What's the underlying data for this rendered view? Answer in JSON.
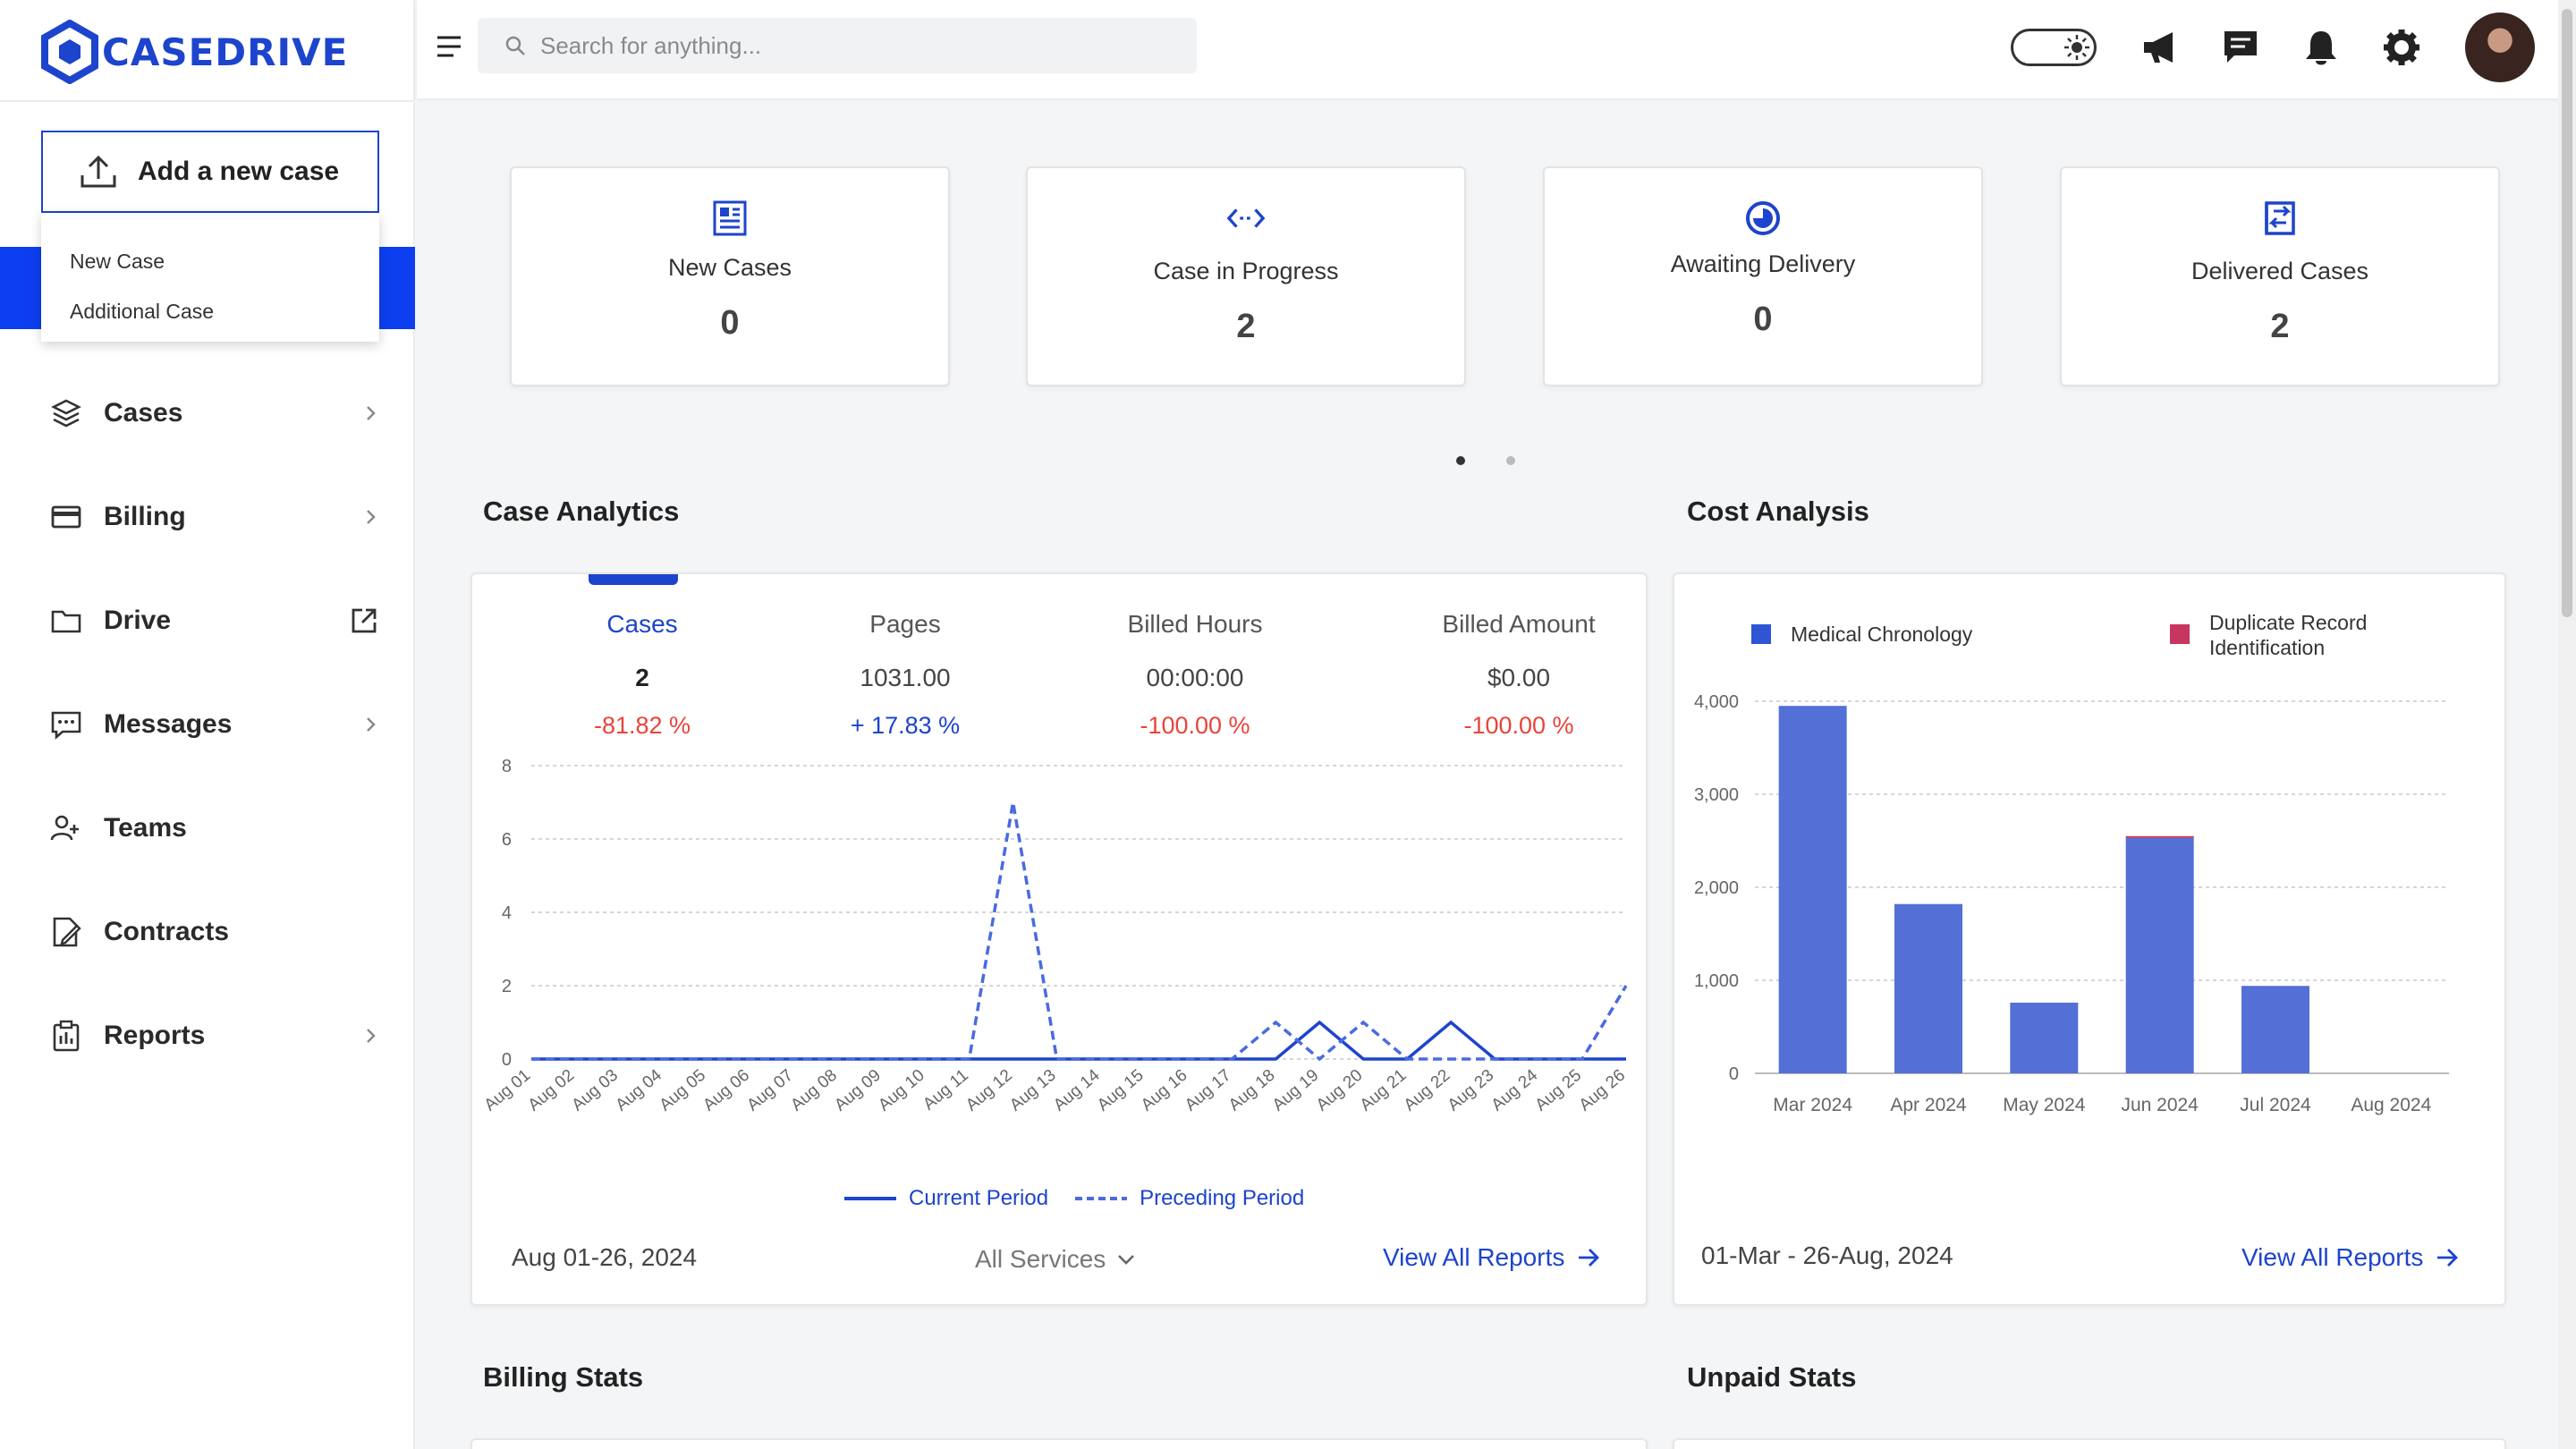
{
  "brand": {
    "name": "CASEDRIVE",
    "color": "#1d44cc"
  },
  "sidebar": {
    "add_case_label": "Add a new case",
    "dropdown": [
      "New Case",
      "Additional Case"
    ],
    "items": [
      {
        "label": "Cases",
        "icon": "layers-icon",
        "trailing": "chevron"
      },
      {
        "label": "Billing",
        "icon": "credit-card-icon",
        "trailing": "chevron"
      },
      {
        "label": "Drive",
        "icon": "folder-icon",
        "trailing": "external-link"
      },
      {
        "label": "Messages",
        "icon": "message-icon",
        "trailing": "chevron"
      },
      {
        "label": "Teams",
        "icon": "team-icon",
        "trailing": "none"
      },
      {
        "label": "Contracts",
        "icon": "contract-icon",
        "trailing": "none"
      },
      {
        "label": "Reports",
        "icon": "clipboard-icon",
        "trailing": "chevron"
      }
    ]
  },
  "topbar": {
    "search_placeholder": "Search for anything...",
    "icons": [
      "theme-toggle-icon",
      "megaphone-icon",
      "chat-icon",
      "bell-icon",
      "gear-icon",
      "avatar"
    ]
  },
  "stats": [
    {
      "title": "New Cases",
      "value": "0",
      "icon": "document-icon"
    },
    {
      "title": "Case in Progress",
      "value": "2",
      "icon": "code-arrows-icon"
    },
    {
      "title": "Awaiting Delivery",
      "value": "0",
      "icon": "clock-half-icon"
    },
    {
      "title": "Delivered Cases",
      "value": "2",
      "icon": "delivered-icon"
    }
  ],
  "case_analytics": {
    "title": "Case Analytics",
    "tabs": [
      {
        "label": "Cases",
        "value": "2",
        "change": "-81.82 %",
        "trend": "neg"
      },
      {
        "label": "Pages",
        "value": "1031.00",
        "change": "+ 17.83 %",
        "trend": "pos"
      },
      {
        "label": "Billed Hours",
        "value": "00:00:00",
        "change": "-100.00 %",
        "trend": "neg"
      },
      {
        "label": "Billed Amount",
        "value": "$0.00",
        "change": "-100.00 %",
        "trend": "neg"
      }
    ],
    "legend_current": "Current Period",
    "legend_preceding": "Preceding Period",
    "date_range": "Aug 01-26, 2024",
    "service_filter": "All Services",
    "view_all": "View All Reports"
  },
  "cost_analysis": {
    "title": "Cost Analysis",
    "legend": [
      "Medical Chronology",
      "Duplicate Record Identification"
    ],
    "date_range": "01-Mar - 26-Aug, 2024",
    "view_all": "View All Reports"
  },
  "bottom_sections": {
    "billing": "Billing Stats",
    "unpaid": "Unpaid Stats"
  },
  "chart_data": [
    {
      "type": "line",
      "x": [
        "Aug 01",
        "Aug 02",
        "Aug 03",
        "Aug 04",
        "Aug 05",
        "Aug 06",
        "Aug 07",
        "Aug 08",
        "Aug 09",
        "Aug 10",
        "Aug 11",
        "Aug 12",
        "Aug 13",
        "Aug 14",
        "Aug 15",
        "Aug 16",
        "Aug 17",
        "Aug 18",
        "Aug 19",
        "Aug 20",
        "Aug 21",
        "Aug 22",
        "Aug 23",
        "Aug 24",
        "Aug 25",
        "Aug 26"
      ],
      "ylim": [
        0,
        8
      ],
      "yticks": [
        0,
        2,
        4,
        6,
        8
      ],
      "grid": true,
      "legend": "bottom",
      "series": [
        {
          "name": "Current Period",
          "style": "solid",
          "color": "#1d44cc",
          "values": [
            0,
            0,
            0,
            0,
            0,
            0,
            0,
            0,
            0,
            0,
            0,
            0,
            0,
            0,
            0,
            0,
            0,
            0,
            1,
            0,
            0,
            1,
            0,
            0,
            0,
            0
          ]
        },
        {
          "name": "Preceding Period",
          "style": "dashed",
          "color": "#4a6be0",
          "values": [
            0,
            0,
            0,
            0,
            0,
            0,
            0,
            0,
            0,
            0,
            0,
            7,
            0,
            0,
            0,
            0,
            0,
            1,
            0,
            1,
            0,
            0,
            0,
            0,
            0,
            2
          ]
        }
      ]
    },
    {
      "type": "bar",
      "categories": [
        "Mar 2024",
        "Apr 2024",
        "May 2024",
        "Jun 2024",
        "Jul 2024",
        "Aug 2024"
      ],
      "ylim": [
        0,
        4000
      ],
      "yticks": [
        0,
        1000,
        2000,
        3000,
        4000
      ],
      "ytick_labels": [
        "0",
        "1,000",
        "2,000",
        "3,000",
        "4,000"
      ],
      "grid": true,
      "legend": "top",
      "stacked": true,
      "series": [
        {
          "name": "Medical Chronology",
          "color": "#5470d6",
          "values": [
            3950,
            1820,
            760,
            2530,
            940,
            0
          ]
        },
        {
          "name": "Duplicate Record Identification",
          "color": "#c7365f",
          "values": [
            0,
            0,
            0,
            20,
            0,
            0
          ]
        }
      ]
    }
  ]
}
